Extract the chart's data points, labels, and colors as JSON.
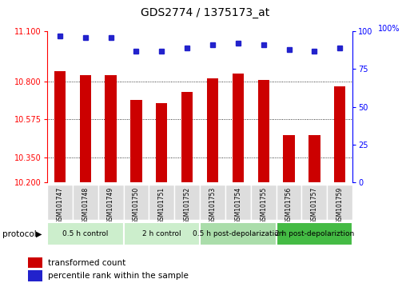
{
  "title": "GDS2774 / 1375173_at",
  "samples": [
    "GSM101747",
    "GSM101748",
    "GSM101749",
    "GSM101750",
    "GSM101751",
    "GSM101752",
    "GSM101753",
    "GSM101754",
    "GSM101755",
    "GSM101756",
    "GSM101757",
    "GSM101759"
  ],
  "transformed_count": [
    10.86,
    10.84,
    10.84,
    10.69,
    10.67,
    10.74,
    10.82,
    10.85,
    10.81,
    10.48,
    10.48,
    10.77
  ],
  "percentile_rank": [
    97,
    96,
    96,
    87,
    87,
    89,
    91,
    92,
    91,
    88,
    87,
    89
  ],
  "ylim_left": [
    10.2,
    11.1
  ],
  "ylim_right": [
    0,
    100
  ],
  "yticks_left": [
    10.2,
    10.35,
    10.575,
    10.8,
    11.1
  ],
  "yticks_right": [
    0,
    25,
    50,
    75,
    100
  ],
  "bar_color": "#cc0000",
  "dot_color": "#2222cc",
  "protocol_groups": [
    {
      "label": "0.5 h control",
      "start": 0,
      "end": 3,
      "color": "#cceecc"
    },
    {
      "label": "2 h control",
      "start": 3,
      "end": 6,
      "color": "#cceecc"
    },
    {
      "label": "0.5 h post-depolarization",
      "start": 6,
      "end": 9,
      "color": "#aaddaa"
    },
    {
      "label": "2 h post-depolariztion",
      "start": 9,
      "end": 12,
      "color": "#44bb44"
    }
  ],
  "legend_bar_label": "transformed count",
  "legend_dot_label": "percentile rank within the sample",
  "protocol_label": "protocol",
  "bg_color": "#ffffff",
  "plot_bg": "#ffffff",
  "sample_box_color": "#dddddd",
  "gridline_yticks": [
    10.35,
    10.575,
    10.8
  ],
  "bar_width": 0.45,
  "dot_marker_size": 5,
  "title_fontsize": 10,
  "tick_fontsize": 7,
  "label_fontsize": 7,
  "protocol_fontsize": 6.5
}
